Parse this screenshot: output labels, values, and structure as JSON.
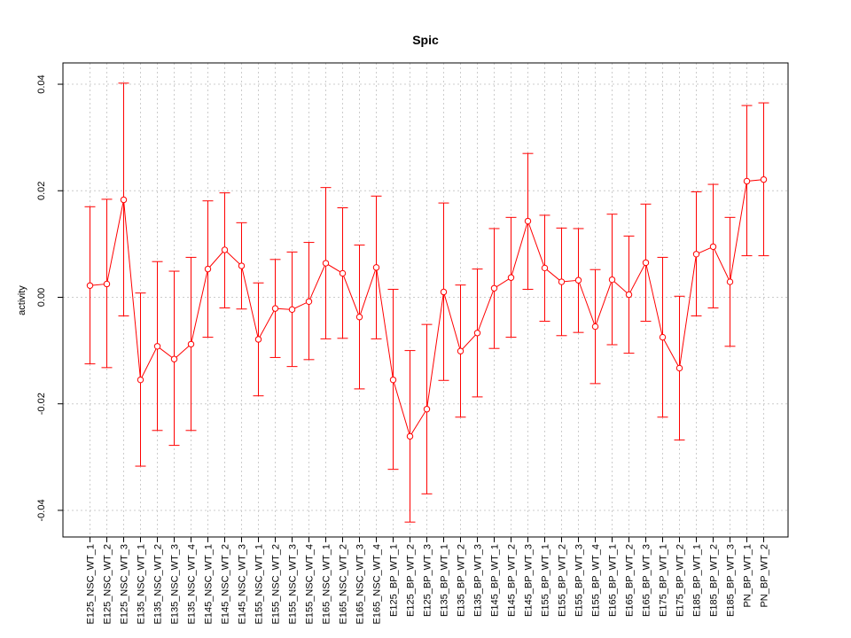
{
  "chart_data": {
    "type": "line",
    "title": "Spic",
    "xlabel": "",
    "ylabel": "activity",
    "ylim": [
      -0.045,
      0.044
    ],
    "yticks": [
      -0.04,
      -0.02,
      0.0,
      0.02,
      0.04
    ],
    "ytick_labels": [
      "-0.04",
      "-0.02",
      "0.00",
      "0.02",
      "0.04"
    ],
    "grid": true,
    "colors": {
      "series": "#ff0000",
      "grid": "#cccccc",
      "axis": "#000000"
    },
    "categories": [
      "E125_NSC_WT_1",
      "E125_NSC_WT_2",
      "E125_NSC_WT_3",
      "E135_NSC_WT_1",
      "E135_NSC_WT_2",
      "E135_NSC_WT_3",
      "E135_NSC_WT_4",
      "E145_NSC_WT_1",
      "E145_NSC_WT_2",
      "E145_NSC_WT_3",
      "E155_NSC_WT_1",
      "E155_NSC_WT_2",
      "E155_NSC_WT_3",
      "E155_NSC_WT_4",
      "E165_NSC_WT_1",
      "E165_NSC_WT_2",
      "E165_NSC_WT_3",
      "E165_NSC_WT_4",
      "E125_BP_WT_1",
      "E125_BP_WT_2",
      "E125_BP_WT_3",
      "E135_BP_WT_1",
      "E135_BP_WT_2",
      "E135_BP_WT_3",
      "E145_BP_WT_1",
      "E145_BP_WT_2",
      "E145_BP_WT_3",
      "E155_BP_WT_1",
      "E155_BP_WT_2",
      "E155_BP_WT_3",
      "E155_BP_WT_4",
      "E165_BP_WT_1",
      "E165_BP_WT_2",
      "E165_BP_WT_3",
      "E175_BP_WT_1",
      "E175_BP_WT_2",
      "E185_BP_WT_1",
      "E185_BP_WT_2",
      "E185_BP_WT_3",
      "PN_BP_WT_1",
      "PN_BP_WT_2"
    ],
    "series": [
      {
        "values": [
          0.0022,
          0.0025,
          0.0183,
          -0.0155,
          -0.0092,
          -0.0116,
          -0.0088,
          0.0053,
          0.0089,
          0.0059,
          -0.0079,
          -0.0021,
          -0.0023,
          -0.0008,
          0.0064,
          0.0045,
          -0.0037,
          0.0056,
          -0.0155,
          -0.0261,
          -0.021,
          0.001,
          -0.0101,
          -0.0067,
          0.0017,
          0.0037,
          0.0143,
          0.0055,
          0.0029,
          0.0032,
          -0.0055,
          0.0033,
          0.0005,
          0.0065,
          -0.0075,
          -0.0133,
          0.0081,
          0.0095,
          0.0029,
          0.0218,
          0.0221
        ],
        "upper": [
          0.017,
          0.0184,
          0.0402,
          0.0008,
          0.0067,
          0.0049,
          0.0075,
          0.0181,
          0.0196,
          0.014,
          0.0027,
          0.0071,
          0.0085,
          0.0103,
          0.0206,
          0.0168,
          0.0098,
          0.019,
          0.0015,
          -0.01,
          -0.0051,
          0.0177,
          0.0023,
          0.0053,
          0.0129,
          0.015,
          0.027,
          0.0154,
          0.013,
          0.0129,
          0.0052,
          0.0156,
          0.0115,
          0.0175,
          0.0075,
          0.0002,
          0.0198,
          0.0212,
          0.015,
          0.036,
          0.0365
        ],
        "lower": [
          -0.0125,
          -0.0132,
          -0.0035,
          -0.0317,
          -0.025,
          -0.0278,
          -0.025,
          -0.0075,
          -0.002,
          -0.0022,
          -0.0185,
          -0.0113,
          -0.013,
          -0.0117,
          -0.0078,
          -0.0077,
          -0.0172,
          -0.0078,
          -0.0323,
          -0.0422,
          -0.0369,
          -0.0156,
          -0.0225,
          -0.0187,
          -0.0096,
          -0.0075,
          0.0015,
          -0.0045,
          -0.0072,
          -0.0066,
          -0.0162,
          -0.0089,
          -0.0105,
          -0.0045,
          -0.0225,
          -0.0268,
          -0.0035,
          -0.002,
          -0.0092,
          0.0078,
          0.0078
        ]
      }
    ]
  }
}
